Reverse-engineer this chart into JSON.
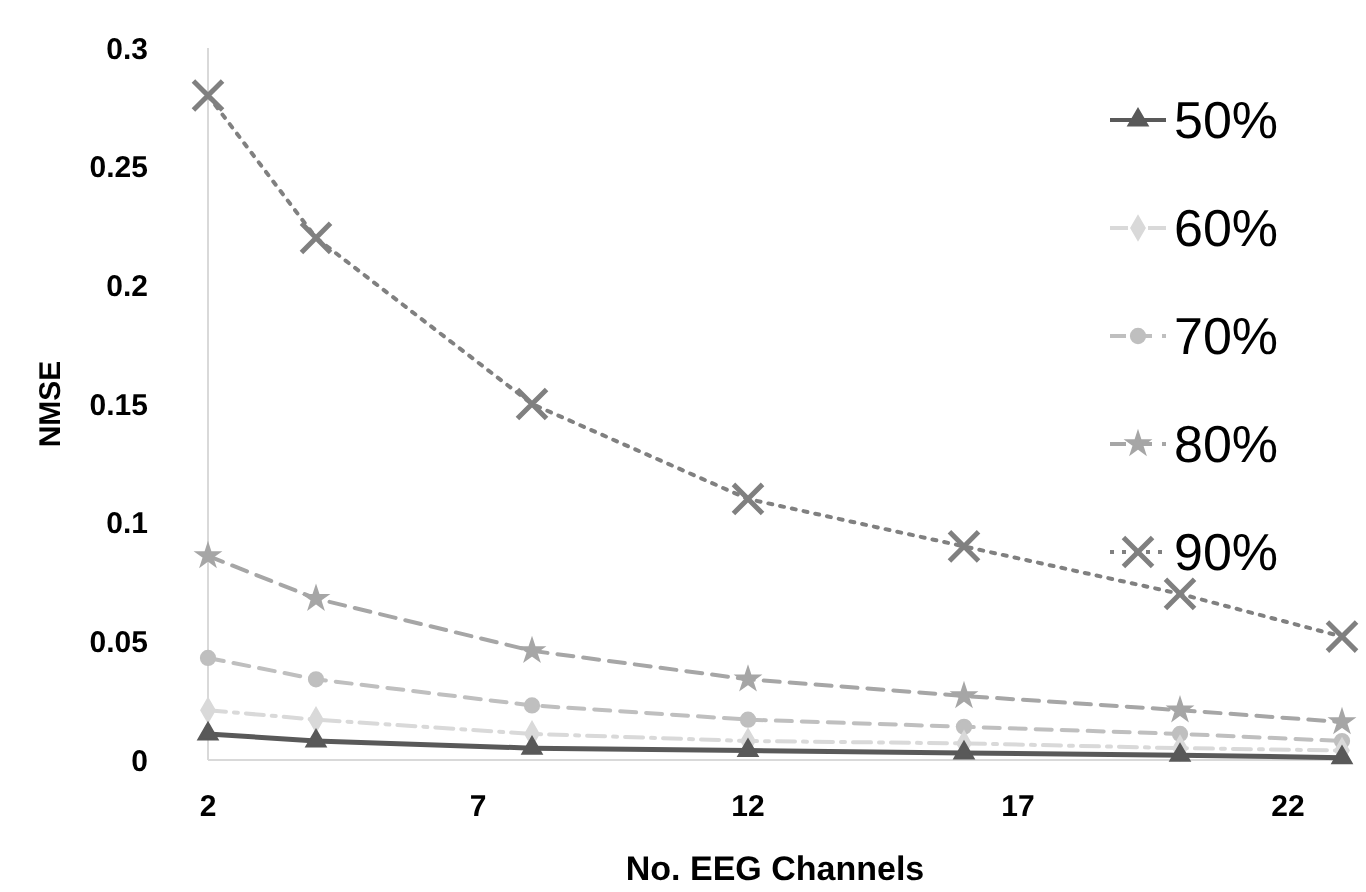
{
  "chart_data": {
    "type": "line",
    "xlabel": "No. EEG Channels",
    "ylabel": "NMSE",
    "x": [
      2,
      4,
      8,
      12,
      16,
      20,
      23
    ],
    "xlim": [
      2,
      23
    ],
    "xticks": [
      2,
      7,
      12,
      17,
      22
    ],
    "ylim": [
      0,
      0.3
    ],
    "yticks": [
      0,
      0.05,
      0.1,
      0.15,
      0.2,
      0.25,
      0.3
    ],
    "grid": false,
    "legend": "top right",
    "series": [
      {
        "name": "50%",
        "color": "#595959",
        "marker": "triangle",
        "line_style": "solid",
        "values": [
          0.011,
          0.008,
          0.005,
          0.004,
          0.003,
          0.002,
          0.001
        ]
      },
      {
        "name": "60%",
        "color": "#d9d9d9",
        "marker": "diamond",
        "line_style": "dashdot",
        "values": [
          0.021,
          0.017,
          0.011,
          0.008,
          0.007,
          0.005,
          0.004
        ]
      },
      {
        "name": "70%",
        "color": "#bfbfbf",
        "marker": "circle",
        "line_style": "dashed",
        "values": [
          0.043,
          0.034,
          0.023,
          0.017,
          0.014,
          0.011,
          0.008
        ]
      },
      {
        "name": "80%",
        "color": "#a6a6a6",
        "marker": "star",
        "line_style": "dashed",
        "values": [
          0.086,
          0.068,
          0.046,
          0.034,
          0.027,
          0.021,
          0.016
        ]
      },
      {
        "name": "90%",
        "color": "#808080",
        "marker": "cross",
        "line_style": "dotted",
        "values": [
          0.28,
          0.22,
          0.15,
          0.11,
          0.09,
          0.07,
          0.052
        ]
      }
    ]
  }
}
